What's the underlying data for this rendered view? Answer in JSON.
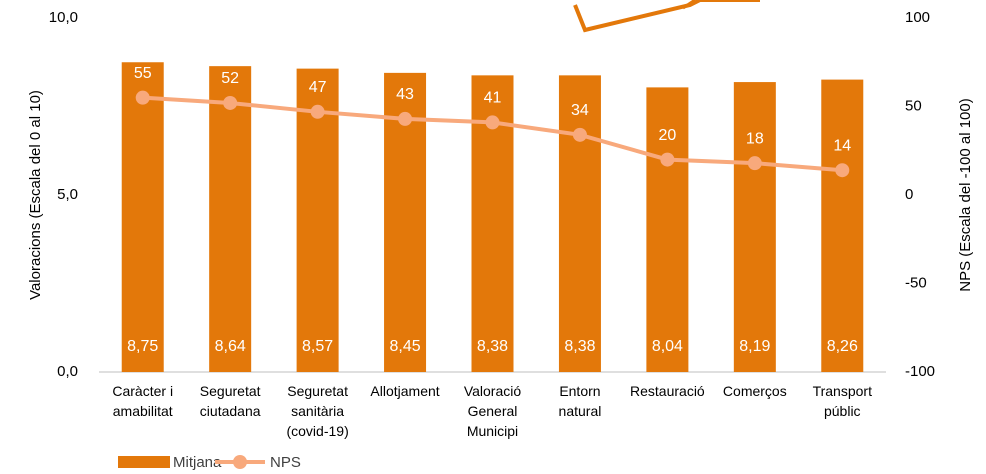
{
  "chart_data": {
    "type": "combo",
    "categories": [
      "Caràcter i\namabilitat",
      "Seguretat\nciutadana",
      "Seguretat\nsanitària\n(covid-19)",
      "Allotjament",
      "Valoració\nGeneral\nMunicipi",
      "Entorn\nnatural",
      "Restauració",
      "Comerços",
      "Transport\npúblic"
    ],
    "series": [
      {
        "name": "Mitjana",
        "type": "bar",
        "color": "#e3780a",
        "axis": "y",
        "values": [
          8.75,
          8.64,
          8.57,
          8.45,
          8.38,
          8.38,
          8.04,
          8.19,
          8.26
        ],
        "value_labels": [
          "8,75",
          "8,64",
          "8,57",
          "8,45",
          "8,38",
          "8,38",
          "8,04",
          "8,19",
          "8,26"
        ]
      },
      {
        "name": "NPS",
        "type": "line",
        "color": "#f8a97c",
        "axis": "y2",
        "values": [
          55,
          52,
          47,
          43,
          41,
          34,
          20,
          18,
          14
        ]
      }
    ],
    "ylabel": "Valoracions (Escala  del 0 al 10)",
    "y2label": "NPS (Escala  del -100 al 100)",
    "ylim": [
      0,
      10
    ],
    "yticks": [
      {
        "value": 0,
        "label": "0,0"
      },
      {
        "value": 5,
        "label": "5,0"
      },
      {
        "value": 10,
        "label": "10,0"
      }
    ],
    "y2lim": [
      -100,
      100
    ],
    "y2ticks": [
      -100,
      -50,
      0,
      50,
      100
    ],
    "legend": "bottom",
    "grid": false
  }
}
